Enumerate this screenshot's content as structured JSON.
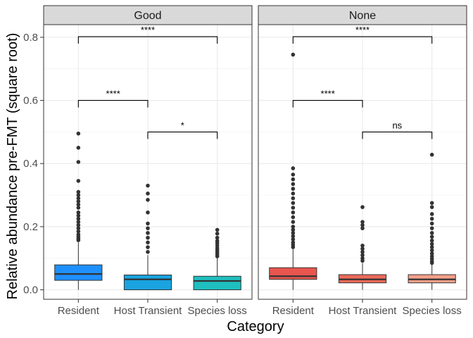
{
  "chart_data": {
    "type": "box",
    "ylabel": "Relative abundance pre-FMT (square root)",
    "xlabel": "Category",
    "ylim": [
      -0.03,
      0.84
    ],
    "yticks": [
      0.0,
      0.2,
      0.4,
      0.6,
      0.8
    ],
    "ytick_labels": [
      "0.0",
      "0.2",
      "0.4",
      "0.6",
      "0.8"
    ],
    "categories": [
      "Resident",
      "Host Transient",
      "Species loss"
    ],
    "facets": [
      {
        "label": "Good",
        "boxes": [
          {
            "category": "Resident",
            "color": "#1E90FF",
            "q1": 0.03,
            "median": 0.05,
            "q3": 0.079,
            "whisker_low": 0.0,
            "whisker_high": 0.15,
            "outliers": [
              0.495,
              0.45,
              0.405,
              0.345,
              0.31,
              0.3,
              0.29,
              0.28,
              0.27,
              0.26,
              0.245,
              0.235,
              0.225,
              0.215,
              0.205,
              0.195,
              0.185,
              0.175,
              0.168,
              0.162,
              0.157
            ]
          },
          {
            "category": "Host Transient",
            "color": "#1AA3E0",
            "q1": 0.0,
            "median": 0.033,
            "q3": 0.047,
            "whisker_low": 0.0,
            "whisker_high": 0.11,
            "outliers": [
              0.33,
              0.305,
              0.285,
              0.245,
              0.21,
              0.195,
              0.18,
              0.165,
              0.15,
              0.135,
              0.12
            ]
          },
          {
            "category": "Species loss",
            "color": "#1FBFBF",
            "q1": 0.0,
            "median": 0.028,
            "q3": 0.043,
            "whisker_low": 0.0,
            "whisker_high": 0.1,
            "outliers": [
              0.19,
              0.178,
              0.165,
              0.155,
              0.148,
              0.14,
              0.132,
              0.125,
              0.118,
              0.112,
              0.106
            ]
          }
        ],
        "comparisons": [
          {
            "from": "Resident",
            "to": "Species loss",
            "label": "****",
            "y": 0.802
          },
          {
            "from": "Resident",
            "to": "Host Transient",
            "label": "****",
            "y": 0.6
          },
          {
            "from": "Host Transient",
            "to": "Species loss",
            "label": "*",
            "y": 0.5
          }
        ]
      },
      {
        "label": "None",
        "boxes": [
          {
            "category": "Resident",
            "color": "#E8564E",
            "q1": 0.033,
            "median": 0.043,
            "q3": 0.07,
            "whisker_low": 0.0,
            "whisker_high": 0.128,
            "outliers": [
              0.745,
              0.385,
              0.365,
              0.35,
              0.335,
              0.32,
              0.305,
              0.29,
              0.275,
              0.26,
              0.245,
              0.23,
              0.215,
              0.2,
              0.19,
              0.18,
              0.17,
              0.16,
              0.15,
              0.142,
              0.135
            ]
          },
          {
            "category": "Host Transient",
            "color": "#EE6A5A",
            "q1": 0.022,
            "median": 0.033,
            "q3": 0.048,
            "whisker_low": 0.0,
            "whisker_high": 0.085,
            "outliers": [
              0.262,
              0.215,
              0.205,
              0.195,
              0.14,
              0.13,
              0.12,
              0.11,
              0.1,
              0.092
            ]
          },
          {
            "category": "Species loss",
            "color": "#F4A08A",
            "q1": 0.022,
            "median": 0.033,
            "q3": 0.048,
            "whisker_low": 0.0,
            "whisker_high": 0.08,
            "outliers": [
              0.428,
              0.275,
              0.262,
              0.24,
              0.225,
              0.21,
              0.195,
              0.18,
              0.168,
              0.156,
              0.145,
              0.135,
              0.125,
              0.115,
              0.106,
              0.098,
              0.09,
              0.085
            ]
          }
        ],
        "comparisons": [
          {
            "from": "Resident",
            "to": "Species loss",
            "label": "****",
            "y": 0.802
          },
          {
            "from": "Resident",
            "to": "Host Transient",
            "label": "****",
            "y": 0.6
          },
          {
            "from": "Host Transient",
            "to": "Species loss",
            "label": "ns",
            "y": 0.5
          }
        ]
      }
    ],
    "grid": true
  }
}
